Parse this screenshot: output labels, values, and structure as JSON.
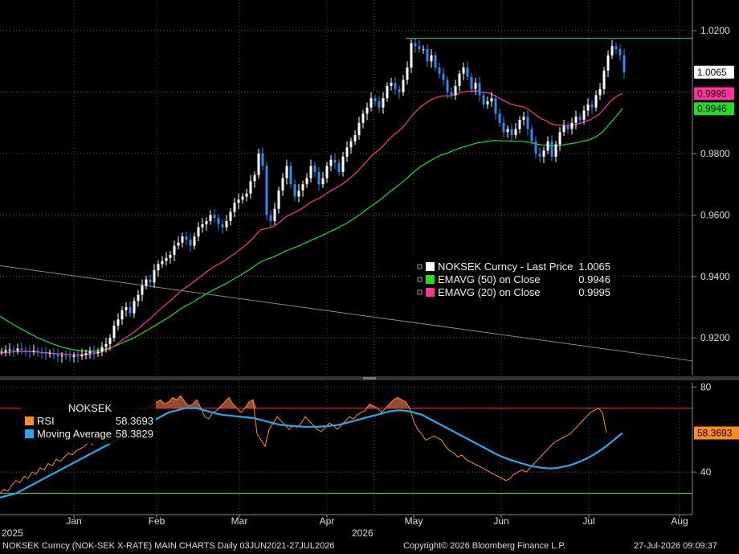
{
  "chart_data": [
    {
      "type": "line",
      "panel": "price",
      "ylim": [
        0.908,
        1.03
      ],
      "yticks": [
        "1.0200",
        "0.9800",
        "0.9600",
        "0.9400",
        "0.9200"
      ],
      "grid": true,
      "legend_position": "center-right",
      "legend": [
        {
          "name": "NOKSEK Curncy - Last Price",
          "value": "1.0065",
          "color": "#ffffff"
        },
        {
          "name": "EMAVG (50)  on Close",
          "value": "0.9946",
          "color": "#22dd22"
        },
        {
          "name": "EMAVG (20)  on Close",
          "value": "0.9995",
          "color": "#ff3399"
        }
      ],
      "price_tags": [
        {
          "value": "1.0065",
          "bg": "#ffffff",
          "fg": "#000000"
        },
        {
          "value": "0.9995",
          "bg": "#ff3399",
          "fg": "#000000"
        },
        {
          "value": "0.9946",
          "bg": "#22dd22",
          "fg": "#000000"
        }
      ],
      "resistance_level": 1.0175,
      "trendline": {
        "start": 0.9435,
        "end": 0.9125
      },
      "x": [
        0,
        5,
        10,
        15,
        20,
        25,
        30,
        35,
        40,
        45,
        50,
        55,
        60,
        65,
        70,
        75,
        80,
        85,
        90,
        95,
        100,
        105,
        110,
        115,
        120,
        125,
        130,
        135,
        140,
        145,
        150,
        155,
        160,
        165,
        170,
        175,
        180,
        185,
        190,
        195,
        200,
        205,
        210,
        215,
        220,
        225,
        230,
        235,
        240,
        245,
        250,
        255,
        260,
        265,
        270,
        275,
        280,
        285,
        290,
        295,
        300,
        305,
        310,
        315,
        320,
        325,
        330,
        335,
        340,
        345,
        350,
        355,
        360,
        365,
        370,
        375,
        380,
        385,
        390,
        395,
        400,
        405,
        410,
        415,
        420,
        425,
        430,
        435,
        440,
        445,
        450,
        455,
        460,
        465,
        470,
        475,
        480,
        485,
        490,
        495,
        500,
        505,
        510,
        515,
        520,
        525,
        530,
        535,
        540,
        545,
        550,
        555,
        560,
        565,
        570,
        575,
        580,
        585,
        590,
        595,
        600,
        605,
        610,
        615,
        620,
        625,
        630,
        635,
        640,
        645,
        650,
        655,
        660,
        665,
        670,
        675,
        680,
        685,
        690,
        695,
        700,
        705,
        710,
        715,
        720,
        725,
        730,
        735,
        740,
        745,
        750,
        755,
        760,
        765,
        770,
        775
      ],
      "close": [
        0.9155,
        0.916,
        0.9162,
        0.9158,
        0.9165,
        0.916,
        0.9158,
        0.9155,
        0.9158,
        0.9152,
        0.915,
        0.9148,
        0.915,
        0.9145,
        0.914,
        0.9142,
        0.914,
        0.9138,
        0.9142,
        0.914,
        0.9145,
        0.915,
        0.9155,
        0.915,
        0.9155,
        0.917,
        0.918,
        0.92,
        0.924,
        0.926,
        0.929,
        0.93,
        0.928,
        0.932,
        0.934,
        0.937,
        0.939,
        0.938,
        0.942,
        0.944,
        0.945,
        0.946,
        0.947,
        0.95,
        0.951,
        0.953,
        0.952,
        0.95,
        0.953,
        0.956,
        0.957,
        0.958,
        0.96,
        0.959,
        0.957,
        0.956,
        0.958,
        0.961,
        0.964,
        0.965,
        0.966,
        0.967,
        0.971,
        0.973,
        0.98,
        0.976,
        0.96,
        0.958,
        0.962,
        0.968,
        0.972,
        0.976,
        0.97,
        0.966,
        0.968,
        0.97,
        0.972,
        0.976,
        0.974,
        0.97,
        0.972,
        0.976,
        0.978,
        0.977,
        0.974,
        0.979,
        0.982,
        0.984,
        0.986,
        0.99,
        0.993,
        0.995,
        0.998,
        0.997,
        0.995,
        0.998,
        1.002,
        1.003,
        1.001,
        1.0,
        1.004,
        1.008,
        1.016,
        1.015,
        1.014,
        1.014,
        1.01,
        1.012,
        1.008,
        1.006,
        1.004,
        1.0,
        0.999,
        1.002,
        1.006,
        1.008,
        1.005,
        1.001,
        1.003,
        0.999,
        0.996,
        0.997,
        0.998,
        0.993,
        0.99,
        0.987,
        0.988,
        0.986,
        0.988,
        0.991,
        0.992,
        0.988,
        0.984,
        0.98,
        0.979,
        0.981,
        0.984,
        0.979,
        0.983,
        0.987,
        0.989,
        0.988,
        0.99,
        0.992,
        0.991,
        0.994,
        0.996,
        0.995,
        0.999,
        1.001,
        1.007,
        1.012,
        1.015,
        1.014,
        1.012,
        1.0065
      ],
      "ema20": [
        0.915,
        0.9152,
        0.9153,
        0.9154,
        0.9155,
        0.9155,
        0.9155,
        0.9155,
        0.9155,
        0.9154,
        0.9153,
        0.9152,
        0.9151,
        0.915,
        0.9149,
        0.9148,
        0.9147,
        0.9146,
        0.9145,
        0.9145,
        0.9145,
        0.9145,
        0.9147,
        0.9148,
        0.915,
        0.9153,
        0.9158,
        0.9163,
        0.917,
        0.9178,
        0.9188,
        0.9198,
        0.9206,
        0.9215,
        0.9225,
        0.9236,
        0.9248,
        0.9258,
        0.927,
        0.9282,
        0.9294,
        0.9305,
        0.9316,
        0.9328,
        0.934,
        0.9352,
        0.9362,
        0.937,
        0.938,
        0.939,
        0.94,
        0.941,
        0.942,
        0.9429,
        0.9437,
        0.9444,
        0.9452,
        0.9461,
        0.9471,
        0.948,
        0.949,
        0.95,
        0.9512,
        0.9524,
        0.954,
        0.9552,
        0.9555,
        0.9558,
        0.9562,
        0.957,
        0.958,
        0.9592,
        0.96,
        0.9606,
        0.9612,
        0.962,
        0.9628,
        0.9638,
        0.9646,
        0.9652,
        0.9658,
        0.9667,
        0.9676,
        0.9684,
        0.969,
        0.9698,
        0.9708,
        0.9718,
        0.973,
        0.9742,
        0.9756,
        0.977,
        0.9785,
        0.9798,
        0.9808,
        0.982,
        0.9834,
        0.9848,
        0.986,
        0.987,
        0.9882,
        0.9896,
        0.9914,
        0.993,
        0.9943,
        0.9955,
        0.9964,
        0.9973,
        0.9979,
        0.9984,
        0.9987,
        0.9988,
        0.9988,
        0.9991,
        0.9995,
        1.0,
        1.0002,
        1.0003,
        1.0004,
        1.0003,
        1.0,
        0.9998,
        0.9996,
        0.999,
        0.9983,
        0.9975,
        0.9969,
        0.9962,
        0.9958,
        0.9955,
        0.9953,
        0.9948,
        0.994,
        0.993,
        0.992,
        0.9912,
        0.9907,
        0.9898,
        0.9894,
        0.9892,
        0.9892,
        0.9891,
        0.9892,
        0.9895,
        0.9897,
        0.9901,
        0.9906,
        0.991,
        0.9918,
        0.9926,
        0.994,
        0.9955,
        0.997,
        0.9982,
        0.999,
        0.9995
      ],
      "ema50": [
        0.927,
        0.9262,
        0.9254,
        0.9246,
        0.9238,
        0.9231,
        0.9224,
        0.9217,
        0.921,
        0.9203,
        0.9197,
        0.9191,
        0.9186,
        0.9181,
        0.9176,
        0.9172,
        0.9168,
        0.9165,
        0.9162,
        0.916,
        0.9158,
        0.9157,
        0.9157,
        0.9157,
        0.9158,
        0.916,
        0.9163,
        0.9166,
        0.917,
        0.9175,
        0.9181,
        0.9187,
        0.9192,
        0.9198,
        0.9205,
        0.9212,
        0.922,
        0.9227,
        0.9235,
        0.9243,
        0.9251,
        0.9259,
        0.9267,
        0.9276,
        0.9285,
        0.9294,
        0.9302,
        0.9309,
        0.9316,
        0.9324,
        0.9332,
        0.934,
        0.9348,
        0.9355,
        0.9362,
        0.9368,
        0.9375,
        0.9382,
        0.939,
        0.9397,
        0.9405,
        0.9413,
        0.9421,
        0.943,
        0.944,
        0.9448,
        0.9453,
        0.9458,
        0.9463,
        0.9469,
        0.9475,
        0.9482,
        0.9487,
        0.9492,
        0.9497,
        0.9503,
        0.9509,
        0.9515,
        0.9521,
        0.9526,
        0.9532,
        0.9538,
        0.9545,
        0.9551,
        0.9557,
        0.9564,
        0.9571,
        0.9579,
        0.9587,
        0.9596,
        0.9605,
        0.9615,
        0.9625,
        0.9634,
        0.9643,
        0.9653,
        0.9664,
        0.9675,
        0.9685,
        0.9695,
        0.9705,
        0.9716,
        0.9728,
        0.974,
        0.975,
        0.976,
        0.9768,
        0.9776,
        0.9783,
        0.979,
        0.9796,
        0.98,
        0.9805,
        0.981,
        0.9815,
        0.982,
        0.9824,
        0.9828,
        0.9832,
        0.9835,
        0.9837,
        0.9839,
        0.9841,
        0.9842,
        0.9842,
        0.9841,
        0.9841,
        0.984,
        0.984,
        0.984,
        0.984,
        0.9838,
        0.9836,
        0.9833,
        0.983,
        0.9828,
        0.9828,
        0.9826,
        0.9826,
        0.9827,
        0.9828,
        0.983,
        0.9832,
        0.9834,
        0.9837,
        0.984,
        0.9842,
        0.9846,
        0.9852,
        0.986,
        0.987,
        0.9885,
        0.99,
        0.9915,
        0.993,
        0.9946
      ]
    },
    {
      "type": "line",
      "panel": "indicator",
      "ylim": [
        20,
        82
      ],
      "yticks": [
        "80",
        "40"
      ],
      "reference_levels": [
        70,
        30
      ],
      "legend_position": "top-left",
      "legend_title": "NOKSEK",
      "legend": [
        {
          "name": "RSI",
          "value": "58.3693",
          "color": "#ff8c1a"
        },
        {
          "name": "Moving Average",
          "value": "58.3829",
          "color": "#22aaee"
        }
      ],
      "price_tags": [
        {
          "value": "58.3693",
          "bg": "#ff8c1a",
          "fg": "#000000"
        }
      ],
      "x": [
        0,
        5,
        10,
        15,
        20,
        25,
        30,
        35,
        40,
        45,
        50,
        55,
        60,
        65,
        70,
        75,
        80,
        85,
        90,
        95,
        100,
        105,
        110,
        115,
        120,
        125,
        130,
        135,
        140,
        145,
        150,
        155,
        160,
        165,
        170,
        175,
        180,
        185,
        190,
        195,
        200,
        205,
        210,
        215,
        220,
        225,
        230,
        235,
        240,
        245,
        250,
        255,
        260,
        265,
        270,
        275,
        280,
        285,
        290,
        295,
        300,
        305,
        310,
        315,
        320,
        325,
        330,
        335,
        340,
        345,
        350,
        355,
        360,
        365,
        370,
        375,
        380,
        385,
        390,
        395,
        400,
        405,
        410,
        415,
        420,
        425,
        430,
        435,
        440,
        445,
        450,
        455,
        460,
        465,
        470,
        475,
        480,
        485,
        490,
        495,
        500,
        505,
        510,
        515,
        520,
        525,
        530,
        535,
        540,
        545,
        550,
        555,
        560,
        565,
        570,
        575,
        580,
        585,
        590,
        595,
        600,
        605,
        610,
        615,
        620,
        625,
        630,
        635,
        640,
        645,
        650,
        655,
        660,
        665,
        670,
        675,
        680,
        685,
        690,
        695,
        700,
        705,
        710,
        715,
        720,
        725,
        730,
        735,
        740,
        745,
        750,
        755,
        760,
        765,
        770,
        775
      ],
      "rsi": [
        30,
        32,
        31,
        34,
        36,
        35,
        38,
        37,
        40,
        39,
        42,
        41,
        44,
        43,
        46,
        45,
        47,
        49,
        48,
        50,
        51,
        52,
        54,
        53,
        55,
        57,
        56,
        58,
        60,
        62,
        63,
        65,
        64,
        67,
        68,
        70,
        69,
        71,
        72,
        73,
        74,
        72,
        73,
        75,
        74,
        76,
        73,
        71,
        72,
        74,
        70,
        66,
        65,
        68,
        69,
        71,
        73,
        75,
        72,
        70,
        68,
        70,
        73,
        74,
        58,
        55,
        52,
        60,
        63,
        66,
        64,
        62,
        60,
        62,
        61,
        63,
        66,
        64,
        62,
        60,
        59,
        61,
        63,
        62,
        60,
        62,
        64,
        66,
        65,
        67,
        68,
        69,
        72,
        71,
        70,
        68,
        70,
        72,
        74,
        75,
        74,
        73,
        70,
        64,
        60,
        58,
        55,
        56,
        57,
        56,
        55,
        52,
        50,
        49,
        47,
        48,
        46,
        45,
        44,
        43,
        42,
        41,
        40,
        39,
        38,
        37,
        36,
        37,
        39,
        40,
        41,
        40,
        42,
        44,
        46,
        48,
        50,
        52,
        54,
        55,
        56,
        57,
        58,
        60,
        62,
        64,
        66,
        68,
        69,
        70,
        68,
        58.3693
      ],
      "ma": [
        28,
        28.5,
        29,
        29.5,
        30,
        31,
        32,
        33,
        34,
        35,
        36,
        37,
        38,
        39,
        40,
        41,
        42,
        43,
        44,
        45,
        46,
        47,
        48,
        49,
        50,
        51,
        52,
        53,
        54,
        55,
        56,
        57,
        58,
        59,
        60,
        61,
        62,
        63,
        64,
        65,
        66,
        67,
        68,
        68.5,
        69,
        69.5,
        70,
        70,
        70,
        70,
        69.5,
        69,
        68.5,
        68,
        67.5,
        67,
        66.8,
        66.6,
        66.4,
        66.2,
        66,
        65.8,
        65.6,
        65.4,
        65,
        64.5,
        64,
        63.5,
        63,
        62.5,
        62.2,
        62,
        61.8,
        61.6,
        61.5,
        61.4,
        61.3,
        61.3,
        61.3,
        61.3,
        61.4,
        61.5,
        61.7,
        61.9,
        62.1,
        62.5,
        63,
        63.5,
        64,
        64.5,
        65,
        65.5,
        66,
        66.5,
        67,
        67.5,
        68,
        68.5,
        68.8,
        69,
        69,
        68.8,
        68.5,
        68,
        67.5,
        67,
        66,
        65,
        64,
        63,
        62,
        61,
        60,
        59,
        58,
        57,
        56,
        55,
        54,
        53,
        52,
        51,
        50,
        49,
        48,
        47.2,
        46.5,
        45.8,
        45.2,
        44.6,
        44,
        43.5,
        43,
        42.6,
        42.3,
        42,
        41.8,
        41.7,
        41.8,
        42,
        42.4,
        42.8,
        43.3,
        43.9,
        44.6,
        45.4,
        46.3,
        47.3,
        48.4,
        49.6,
        50.9,
        52.3,
        53.8,
        55.3,
        56.9,
        58.3829
      ]
    }
  ],
  "xaxis": {
    "months": [
      "Jan",
      "Feb",
      "Mar",
      "Apr",
      "May",
      "Jun",
      "Jul",
      "Aug"
    ],
    "month_x": [
      92,
      195,
      298,
      407,
      515,
      624,
      733,
      846
    ],
    "years": [
      "2025",
      "2026"
    ],
    "year_x": [
      0,
      436
    ]
  },
  "footer": {
    "left": "NOKSEK Curncy (NOK-SEK X-RATE) MAIN CHARTS Daily 03JUN2021-27JUL2026",
    "center": "Copyright© 2026 Bloomberg Finance L.P.",
    "right": "27-Jul-2026 09:09:37"
  },
  "colors": {
    "background": "#000000",
    "candle_up": "#ffffff",
    "candle_down": "#3388ee",
    "ema20": "#ff3399",
    "ema50": "#22dd22",
    "rsi": "#ff8c1a",
    "ma": "#22aaee",
    "resistance": "#55dd55",
    "trendline": "#888888",
    "rsi_upper": "#cc2222",
    "rsi_lower": "#44cc44"
  }
}
